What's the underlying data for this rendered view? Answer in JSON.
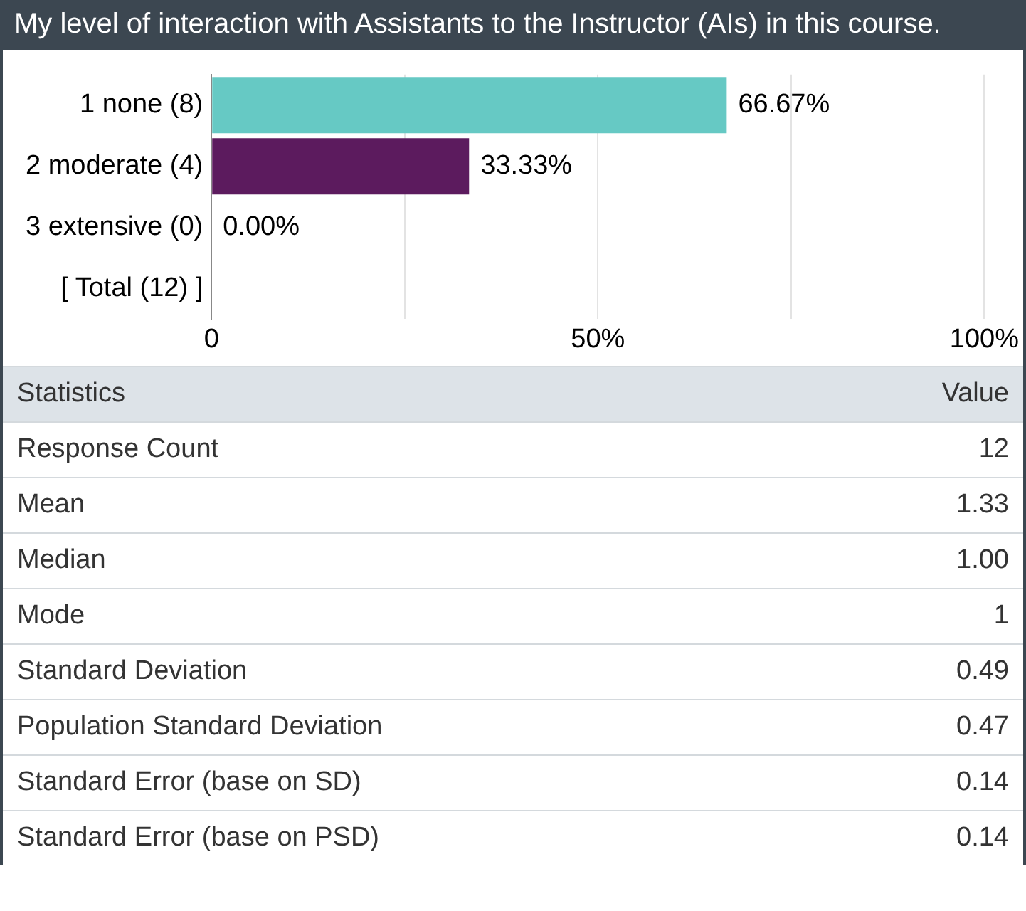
{
  "chart_data": [
    {
      "type": "bar",
      "orientation": "horizontal",
      "title": "My level of interaction with Assistants to the Instructor (AIs) in this course.",
      "categories": [
        "1 none (8)",
        "2 moderate (4)",
        "3 extensive (0)",
        "[ Total (12) ]"
      ],
      "values": [
        66.67,
        33.33,
        0,
        null
      ],
      "colors": [
        "#66c9c4",
        "#5c1b5e",
        "#5c1b5e",
        "#5c1b5e"
      ],
      "value_labels": [
        "66.67%",
        "33.33%",
        "0.00%",
        null
      ],
      "xlim": [
        0,
        100
      ],
      "xticks": [
        {
          "value": 0,
          "label": "0"
        },
        {
          "value": 25,
          "label": null
        },
        {
          "value": 50,
          "label": "50%"
        },
        {
          "value": 75,
          "label": null
        },
        {
          "value": 100,
          "label": "100%"
        }
      ],
      "grid": "x"
    },
    {
      "type": "other",
      "annotations": [
        "Statistics",
        "Value"
      ],
      "categories": [
        "Response Count",
        "Mean",
        "Median",
        "Mode",
        "Standard Deviation",
        "Population Standard Deviation",
        "Standard Error (base on SD)",
        "Standard Error (base on PSD)"
      ],
      "value_labels": [
        "12",
        "1.33",
        "1.00",
        "1",
        "0.49",
        "0.47",
        "0.14",
        "0.14"
      ]
    }
  ]
}
